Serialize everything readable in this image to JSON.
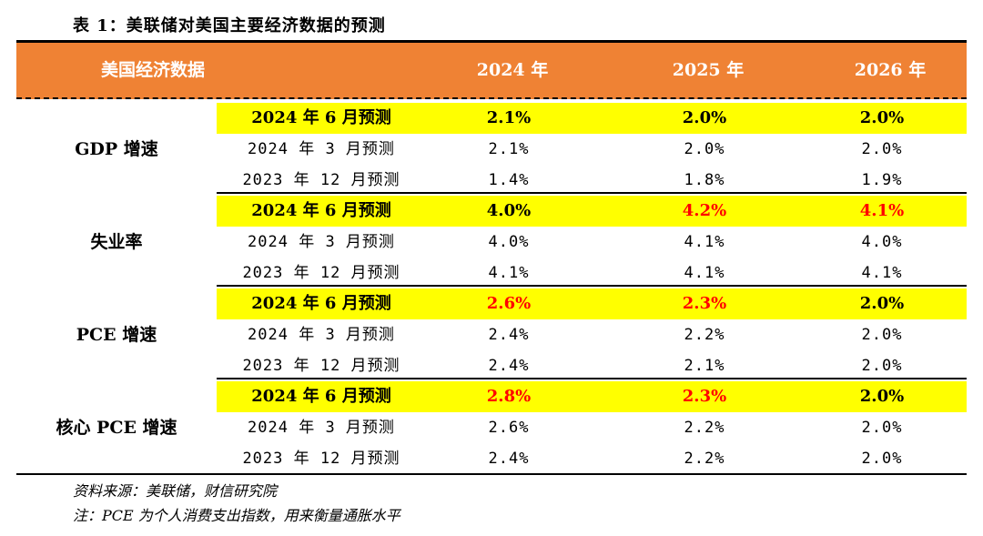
{
  "title": "表 1：美联储对美国主要经济数据的预测",
  "header": {
    "label": "美国经济数据",
    "years": [
      "2024 年",
      "2025 年",
      "2026 年"
    ]
  },
  "groups": [
    {
      "name": "GDP 增速",
      "rows": [
        {
          "label": "2024 年 6 月预测",
          "values": [
            "2.1%",
            "2.0%",
            "2.0%"
          ],
          "highlight": true,
          "red": [
            false,
            false,
            false
          ]
        },
        {
          "label": "2024 年 3 月预测",
          "values": [
            "2.1%",
            "2.0%",
            "2.0%"
          ],
          "highlight": false,
          "red": [
            false,
            false,
            false
          ]
        },
        {
          "label": "2023 年 12 月预测",
          "values": [
            "1.4%",
            "1.8%",
            "1.9%"
          ],
          "highlight": false,
          "red": [
            false,
            false,
            false
          ]
        }
      ]
    },
    {
      "name": "失业率",
      "rows": [
        {
          "label": "2024 年 6 月预测",
          "values": [
            "4.0%",
            "4.2%",
            "4.1%"
          ],
          "highlight": true,
          "red": [
            false,
            true,
            true
          ]
        },
        {
          "label": "2024 年 3 月预测",
          "values": [
            "4.0%",
            "4.1%",
            "4.0%"
          ],
          "highlight": false,
          "red": [
            false,
            false,
            false
          ]
        },
        {
          "label": "2023 年 12 月预测",
          "values": [
            "4.1%",
            "4.1%",
            "4.1%"
          ],
          "highlight": false,
          "red": [
            false,
            false,
            false
          ]
        }
      ]
    },
    {
      "name": "PCE 增速",
      "rows": [
        {
          "label": "2024 年 6 月预测",
          "values": [
            "2.6%",
            "2.3%",
            "2.0%"
          ],
          "highlight": true,
          "red": [
            true,
            true,
            false
          ]
        },
        {
          "label": "2024 年 3 月预测",
          "values": [
            "2.4%",
            "2.2%",
            "2.0%"
          ],
          "highlight": false,
          "red": [
            false,
            false,
            false
          ]
        },
        {
          "label": "2023 年 12 月预测",
          "values": [
            "2.4%",
            "2.1%",
            "2.0%"
          ],
          "highlight": false,
          "red": [
            false,
            false,
            false
          ]
        }
      ]
    },
    {
      "name": "核心 PCE 增速",
      "rows": [
        {
          "label": "2024 年 6 月预测",
          "values": [
            "2.8%",
            "2.3%",
            "2.0%"
          ],
          "highlight": true,
          "red": [
            true,
            true,
            false
          ]
        },
        {
          "label": "2024 年 3 月预测",
          "values": [
            "2.6%",
            "2.2%",
            "2.0%"
          ],
          "highlight": false,
          "red": [
            false,
            false,
            false
          ]
        },
        {
          "label": "2023 年 12 月预测",
          "values": [
            "2.4%",
            "2.2%",
            "2.0%"
          ],
          "highlight": false,
          "red": [
            false,
            false,
            false
          ]
        }
      ]
    }
  ],
  "notes": {
    "source": "资料来源：美联储，财信研究院",
    "note": "注：PCE 为个人消费支出指数，用来衡量通胀水平"
  },
  "colors": {
    "header_bg": "#ef8234",
    "highlight_bg": "#ffff00",
    "emphasis_red": "#ff0000"
  }
}
